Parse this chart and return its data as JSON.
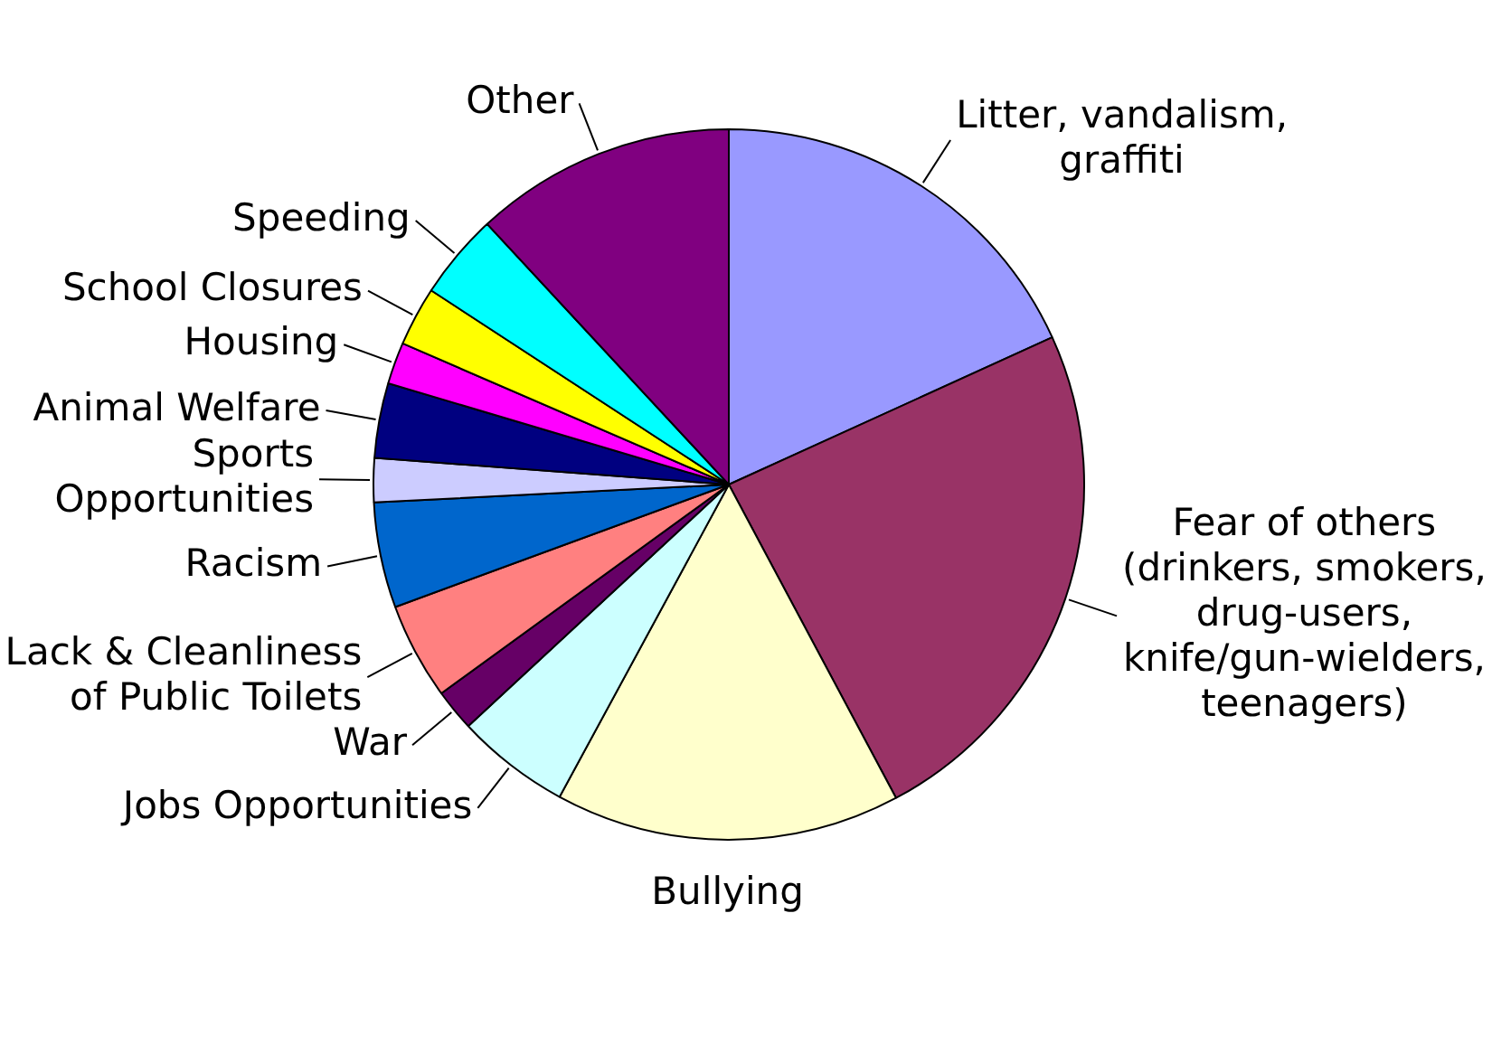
{
  "chart_data": {
    "type": "pie",
    "categories": [
      "Litter, vandalism, graffiti",
      "Fear of others (drinkers, smokers, drug-users, knife/gun-wielders, teenagers)",
      "Bullying",
      "Jobs Opportunities",
      "War",
      "Lack & Cleanliness of Public Toilets",
      "Racism",
      "Sports Opportunities",
      "Animal Welfare",
      "Housing",
      "School Closures",
      "Speeding",
      "Other"
    ],
    "values": [
      18.2,
      24,
      15.7,
      5.2,
      1.9,
      4.4,
      4.8,
      2,
      3.4,
      1.9,
      2.7,
      3.9,
      11.9
    ],
    "colors": [
      "#9999ff",
      "#993366",
      "#ffffcc",
      "#ccffff",
      "#660066",
      "#ff8080",
      "#0066cc",
      "#ccccff",
      "#000080",
      "#ff00ff",
      "#ffff00",
      "#00ffff",
      "#800080"
    ]
  }
}
